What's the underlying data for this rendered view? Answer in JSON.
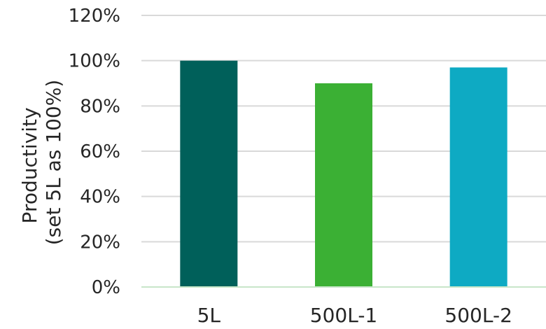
{
  "chart_data": {
    "type": "bar",
    "title": "",
    "xlabel": "",
    "ylabel_lines": [
      "Productivity",
      "(set 5L as 100%)"
    ],
    "categories": [
      "5L",
      "500L-1",
      "500L-2"
    ],
    "values": [
      100,
      90,
      97
    ],
    "colors": [
      "#00605A",
      "#3BB034",
      "#0EAAC3"
    ],
    "ylim": [
      0,
      120
    ],
    "yticks": [
      0,
      20,
      40,
      60,
      80,
      100,
      120
    ],
    "ytick_suffix": "%",
    "grid": true,
    "grid_color": "#d9d9d9",
    "baseline_color": "#c8e6c9",
    "legend": "none"
  }
}
